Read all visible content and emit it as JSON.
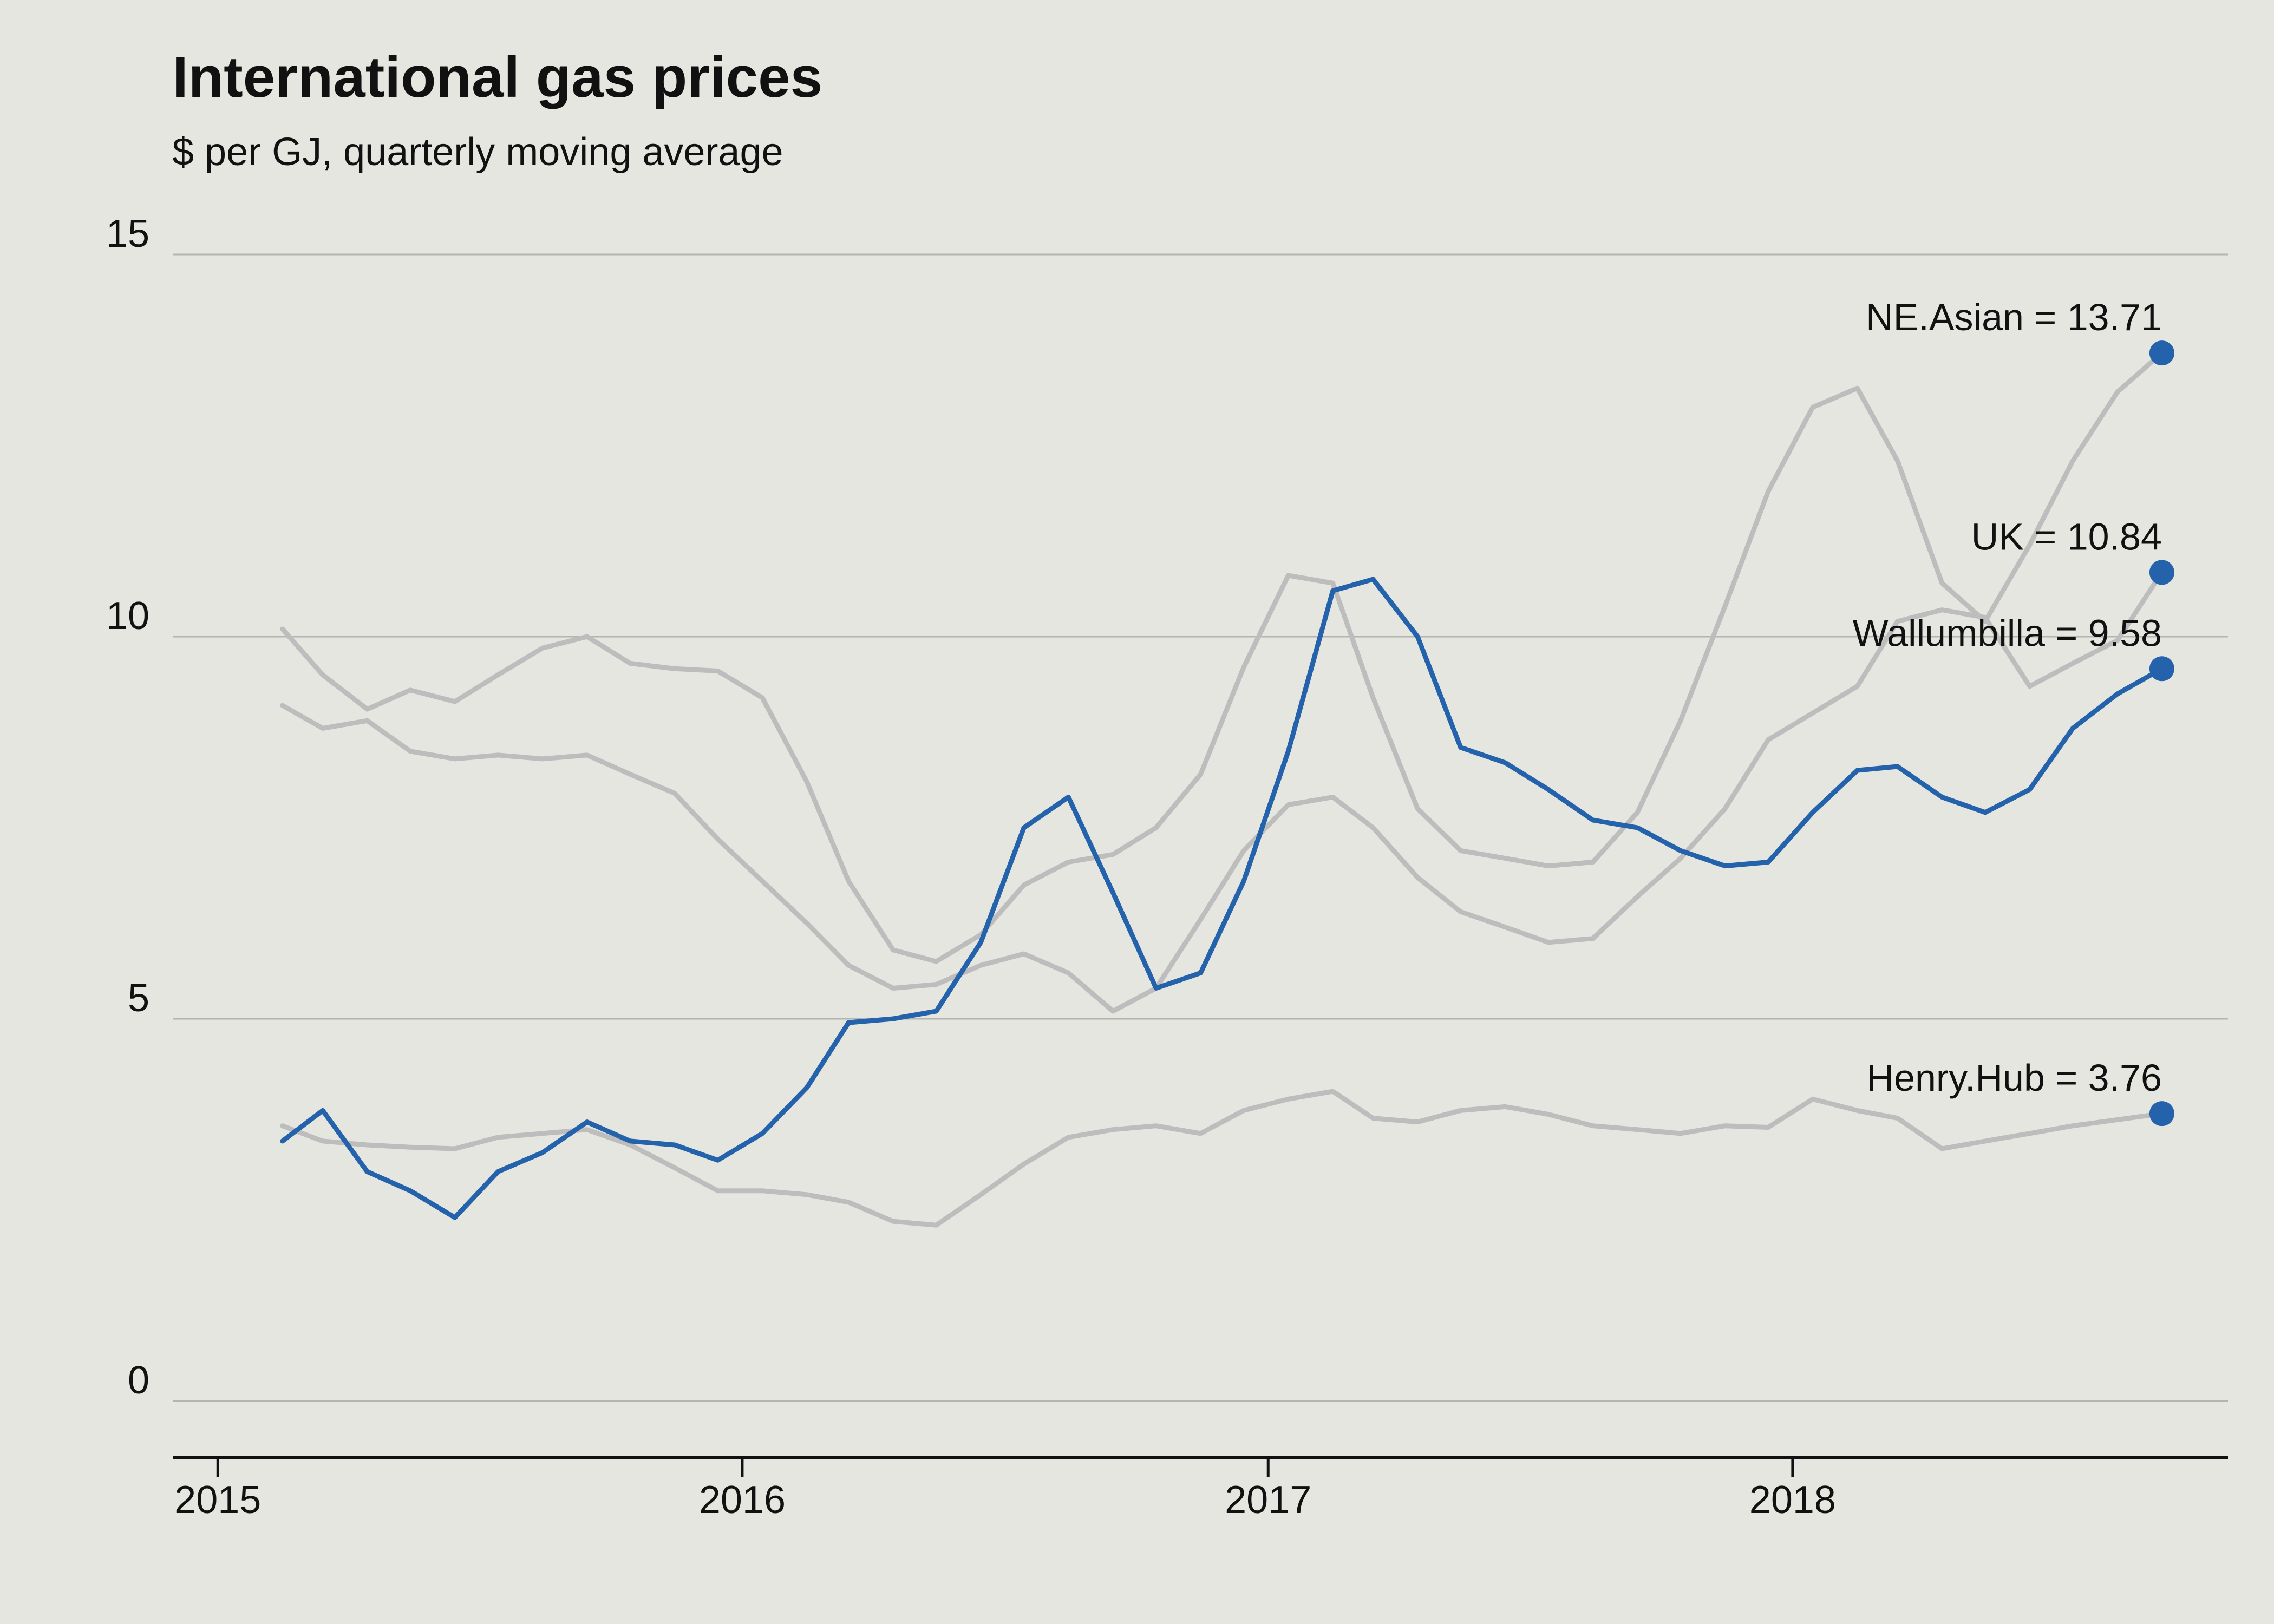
{
  "chart_data": {
    "type": "line",
    "title": "International gas prices",
    "subtitle": "$ per GJ, quarterly moving average",
    "xlabel": "",
    "ylabel": "",
    "ylim": [
      0,
      15
    ],
    "xlim": [
      "2014-12-01",
      "2018-10-31"
    ],
    "yticks": [
      0,
      5,
      10,
      15
    ],
    "xticks": [
      {
        "date": "2015-01-01",
        "label": "2015"
      },
      {
        "date": "2016-01-01",
        "label": "2016"
      },
      {
        "date": "2017-01-01",
        "label": "2017"
      },
      {
        "date": "2018-01-01",
        "label": "2018"
      }
    ],
    "grid": "horizontal",
    "colors": {
      "highlight": "#2462ab",
      "context": "#bdbdbd",
      "grid": "#b4b4b0",
      "axis": "#111111"
    },
    "x": [
      "2015-02",
      "2015-03",
      "2015-04",
      "2015-05",
      "2015-06",
      "2015-07",
      "2015-08",
      "2015-09",
      "2015-10",
      "2015-11",
      "2015-12",
      "2016-01",
      "2016-02",
      "2016-03",
      "2016-04",
      "2016-05",
      "2016-06",
      "2016-07",
      "2016-08",
      "2016-09",
      "2016-10",
      "2016-11",
      "2016-12",
      "2017-01",
      "2017-02",
      "2017-03",
      "2017-04",
      "2017-05",
      "2017-06",
      "2017-07",
      "2017-08",
      "2017-09",
      "2017-10",
      "2017-11",
      "2017-12",
      "2018-01",
      "2018-02",
      "2018-03",
      "2018-04",
      "2018-05",
      "2018-06",
      "2018-07",
      "2018-08",
      "2018-09"
    ],
    "series": [
      {
        "name": "NE.Asian",
        "highlight": false,
        "end_label": "NE.Asian = 13.71",
        "values": [
          10.1,
          9.5,
          9.05,
          9.3,
          9.15,
          9.5,
          9.85,
          10.0,
          9.65,
          9.58,
          9.55,
          9.2,
          8.1,
          6.8,
          5.9,
          5.75,
          6.1,
          6.75,
          7.05,
          7.15,
          7.5,
          8.2,
          9.6,
          10.8,
          10.7,
          9.2,
          7.75,
          7.2,
          7.1,
          7.0,
          7.05,
          7.7,
          8.9,
          10.4,
          11.9,
          13.0,
          13.25,
          12.3,
          10.7,
          10.2,
          11.2,
          12.3,
          13.2,
          13.71
        ]
      },
      {
        "name": "UK",
        "highlight": false,
        "end_label": "UK = 10.84",
        "values": [
          9.1,
          8.8,
          8.9,
          8.5,
          8.4,
          8.45,
          8.4,
          8.45,
          8.2,
          7.95,
          7.35,
          6.8,
          6.25,
          5.7,
          5.4,
          5.45,
          5.7,
          5.85,
          5.6,
          5.1,
          5.4,
          6.3,
          7.2,
          7.8,
          7.9,
          7.5,
          6.85,
          6.4,
          6.2,
          6.0,
          6.05,
          6.6,
          7.1,
          7.75,
          8.65,
          9.0,
          9.35,
          10.2,
          10.35,
          10.25,
          9.35,
          9.65,
          9.95,
          10.84
        ]
      },
      {
        "name": "Henry.Hub",
        "highlight": false,
        "end_label": "Henry.Hub = 3.76",
        "values": [
          3.6,
          3.4,
          3.35,
          3.32,
          3.3,
          3.45,
          3.5,
          3.55,
          3.35,
          3.05,
          2.75,
          2.75,
          2.7,
          2.6,
          2.35,
          2.3,
          2.7,
          3.1,
          3.45,
          3.55,
          3.6,
          3.5,
          3.8,
          3.95,
          4.05,
          3.7,
          3.65,
          3.8,
          3.85,
          3.75,
          3.6,
          3.55,
          3.5,
          3.6,
          3.58,
          3.95,
          3.8,
          3.7,
          3.3,
          3.4,
          3.5,
          3.6,
          3.68,
          3.76
        ]
      },
      {
        "name": "Wallumbilla",
        "highlight": true,
        "end_label": "Wallumbilla = 9.58",
        "values": [
          3.4,
          3.8,
          3.0,
          2.75,
          2.4,
          3.0,
          3.25,
          3.65,
          3.4,
          3.35,
          3.15,
          3.5,
          4.1,
          4.95,
          5.0,
          5.1,
          6.0,
          7.5,
          7.9,
          6.65,
          5.4,
          5.6,
          6.8,
          8.5,
          10.6,
          10.75,
          10.0,
          8.55,
          8.35,
          8.0,
          7.6,
          7.5,
          7.2,
          7.0,
          7.05,
          7.7,
          8.25,
          8.3,
          7.9,
          7.7,
          8.0,
          8.8,
          9.25,
          9.58
        ]
      }
    ]
  }
}
